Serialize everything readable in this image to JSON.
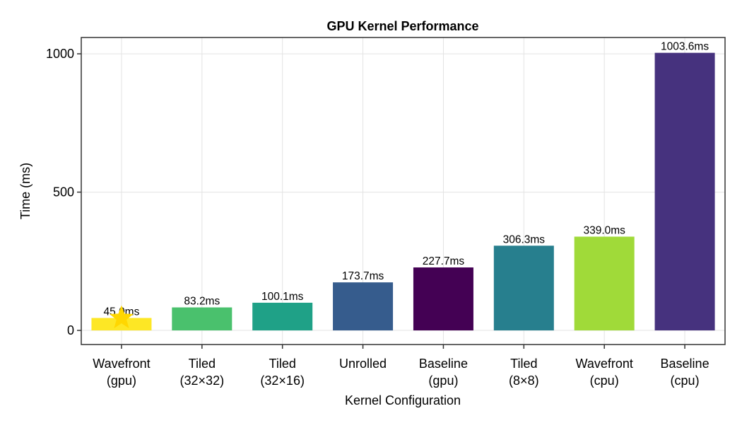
{
  "chart_data": {
    "type": "bar",
    "title": "GPU Kernel Performance",
    "xlabel": "Kernel Configuration",
    "ylabel": "Time (ms)",
    "ylim": [
      -51,
      1059
    ],
    "yticks": [
      0,
      500,
      1000
    ],
    "grid": true,
    "categories": [
      [
        "Wavefront",
        "(gpu)"
      ],
      [
        "Tiled",
        "(32×32)"
      ],
      [
        "Tiled",
        "(32×16)"
      ],
      [
        "Unrolled",
        ""
      ],
      [
        "Baseline",
        "(gpu)"
      ],
      [
        "Tiled",
        "(8×8)"
      ],
      [
        "Wavefront",
        "(cpu)"
      ],
      [
        "Baseline",
        "(cpu)"
      ]
    ],
    "values": [
      45.0,
      83.2,
      100.1,
      173.7,
      227.7,
      306.3,
      339.0,
      1003.6
    ],
    "data_labels": [
      "45.0ms",
      "83.2ms",
      "100.1ms",
      "173.7ms",
      "227.7ms",
      "306.3ms",
      "339.0ms",
      "1003.6ms"
    ],
    "colors": [
      "#fde725",
      "#4ac16d",
      "#1fa187",
      "#365c8d",
      "#440154",
      "#277f8e",
      "#a0da39",
      "#46327e"
    ],
    "best_marker": {
      "category_index": 0,
      "icon": "star-icon",
      "color": "#ffd700"
    }
  }
}
